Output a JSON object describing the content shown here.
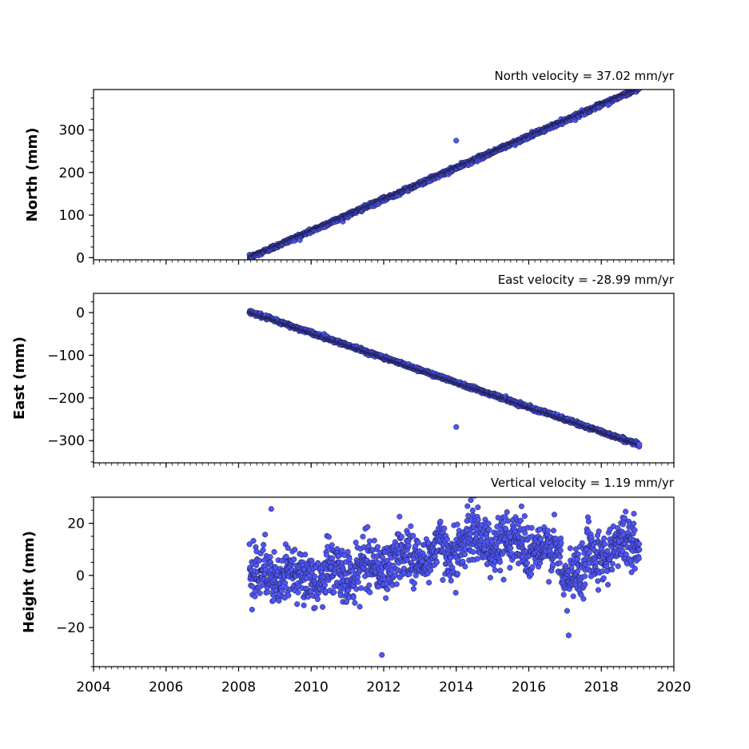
{
  "chart_data": [
    {
      "type": "scatter",
      "title": "North velocity = 37.02 mm/yr",
      "ylabel": "North (mm)",
      "xlim": [
        2004,
        2020
      ],
      "ylim": [
        -5,
        395
      ],
      "y_ticks": [
        "0",
        "100",
        "200",
        "300"
      ],
      "y_tick_values": [
        0,
        100,
        200,
        300
      ],
      "x_ticks": [],
      "marker_color": "#4f56f5",
      "edge_color": "#1a1a40",
      "trend": {
        "start_year": 2008.3,
        "end_year": 2019.05,
        "velocity_mm_per_yr": 37.02,
        "start_value": 0
      },
      "noise_mm": 2.5,
      "outliers": [
        {
          "x": 2014.0,
          "y": 275
        }
      ]
    },
    {
      "type": "scatter",
      "title": "East velocity = -28.99 mm/yr",
      "ylabel": "East (mm)",
      "xlim": [
        2004,
        2020
      ],
      "ylim": [
        -352,
        45
      ],
      "y_ticks": [
        "0",
        "−100",
        "−200",
        "−300"
      ],
      "y_tick_values": [
        0,
        -100,
        -200,
        -300
      ],
      "x_ticks": [],
      "marker_color": "#4f56f5",
      "edge_color": "#1a1a40",
      "trend": {
        "start_year": 2008.3,
        "end_year": 2019.05,
        "velocity_mm_per_yr": -28.99,
        "start_value": 2
      },
      "noise_mm": 2.2,
      "outliers": [
        {
          "x": 2014.0,
          "y": -268
        }
      ]
    },
    {
      "type": "scatter",
      "title": "Vertical velocity = 1.19 mm/yr",
      "ylabel": "Height (mm)",
      "xlim": [
        2004,
        2020
      ],
      "ylim": [
        -35,
        30
      ],
      "y_ticks": [
        "20",
        "0",
        "−20"
      ],
      "y_tick_values": [
        20,
        0,
        -20
      ],
      "x_ticks": [
        "2004",
        "2006",
        "2008",
        "2010",
        "2012",
        "2014",
        "2016",
        "2018",
        "2020"
      ],
      "x_tick_values": [
        2004,
        2006,
        2008,
        2010,
        2012,
        2014,
        2016,
        2018,
        2020
      ],
      "marker_color": "#4f56f5",
      "edge_color": "#1a1a40",
      "trend": {
        "start_year": 2008.3,
        "end_year": 2019.05,
        "velocity_mm_per_yr": 1.19,
        "start_value": 0
      },
      "noise_mm": 5,
      "outliers": [
        {
          "x": 2008.9,
          "y": 25.5
        },
        {
          "x": 2011.95,
          "y": -30.5
        },
        {
          "x": 2015.8,
          "y": 26.5
        },
        {
          "x": 2017.1,
          "y": -23
        }
      ]
    }
  ]
}
